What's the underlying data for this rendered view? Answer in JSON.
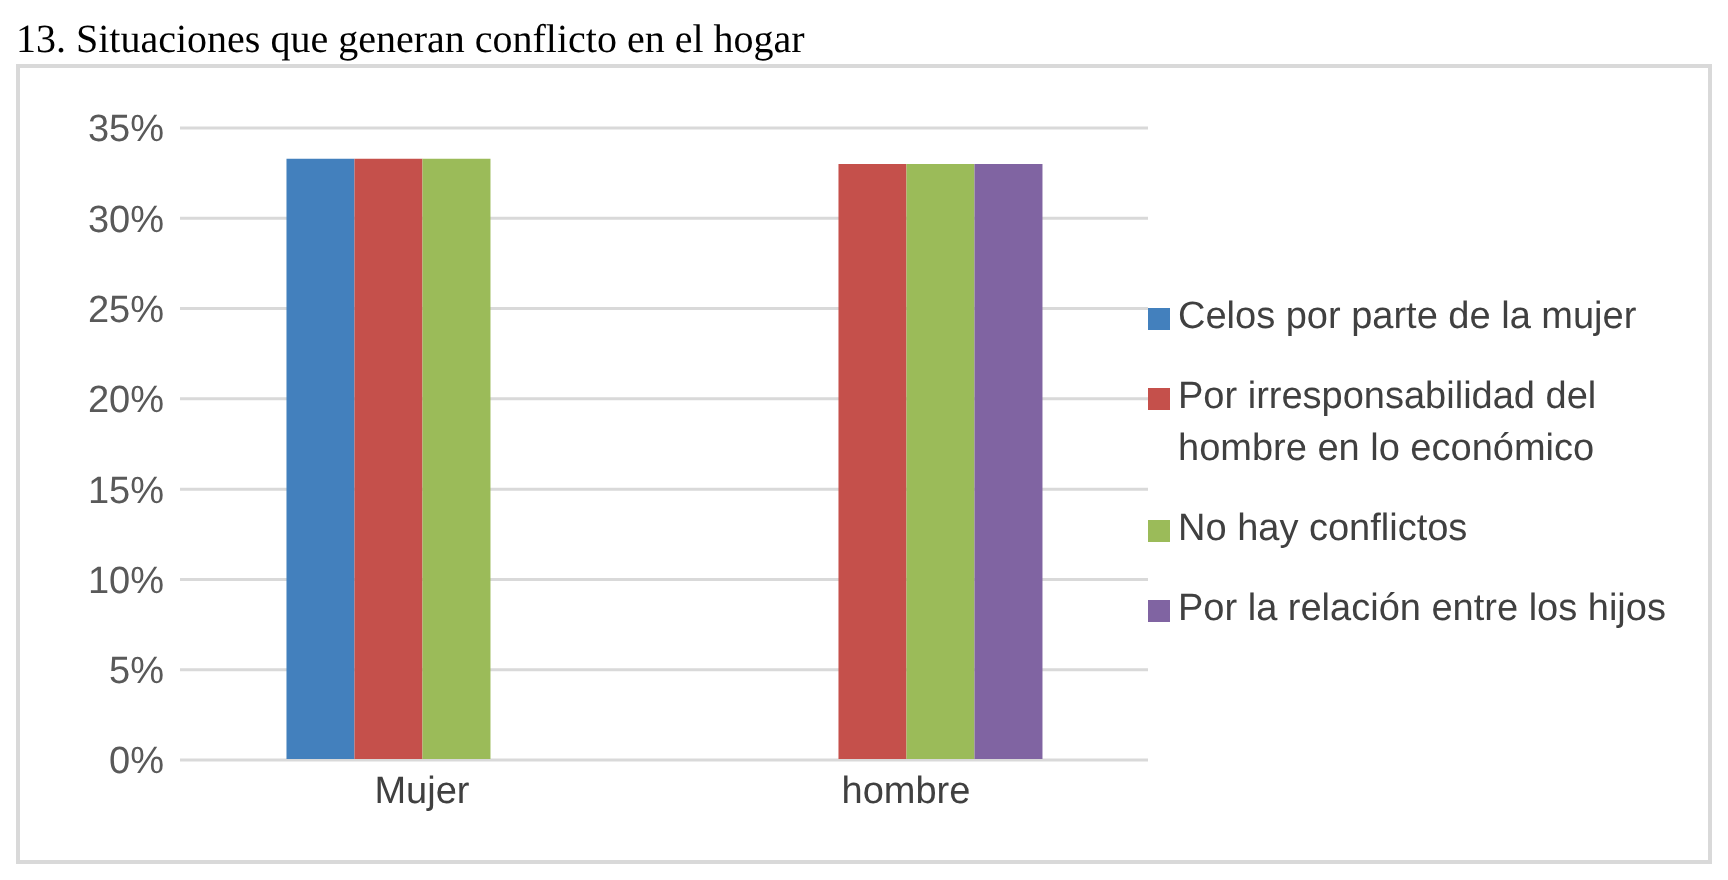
{
  "chart_data": {
    "type": "bar",
    "title": "13. Situaciones que generan conflicto en el hogar",
    "categories": [
      "Mujer",
      "hombre"
    ],
    "series": [
      {
        "name": "Celos por parte de la mujer",
        "color": "#4380bd",
        "values": [
          33.3,
          0
        ]
      },
      {
        "name": "Por irresponsabilidad del hombre en lo económico",
        "color": "#c5504b",
        "values": [
          33.3,
          33
        ]
      },
      {
        "name": "No hay conflictos",
        "color": "#9bbb59",
        "values": [
          33.3,
          33
        ]
      },
      {
        "name": "Por la relación entre los hijos",
        "color": "#8064a2",
        "values": [
          null,
          33
        ]
      }
    ],
    "ylim": [
      0,
      35
    ],
    "yticks": [
      {
        "value": 0,
        "label": "0%"
      },
      {
        "value": 5,
        "label": "5%"
      },
      {
        "value": 10,
        "label": "10%"
      },
      {
        "value": 15,
        "label": "15%"
      },
      {
        "value": 20,
        "label": "20%"
      },
      {
        "value": 25,
        "label": "25%"
      },
      {
        "value": 30,
        "label": "30%"
      },
      {
        "value": 35,
        "label": "35%"
      }
    ],
    "grid": "y",
    "legend": "right"
  }
}
